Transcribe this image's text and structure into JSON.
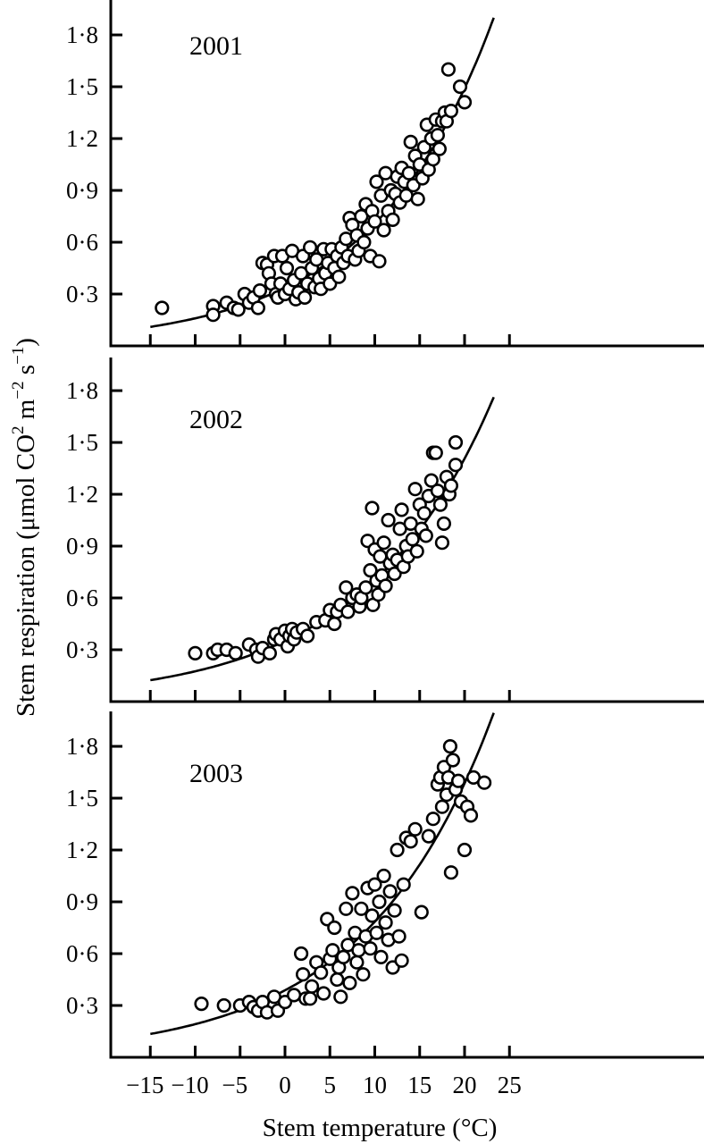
{
  "figure": {
    "xlabel": "Stem temperature (°C)",
    "ylabel_main": "Stem respiration (μmol CO",
    "ylabel_sub_2": "2",
    "ylabel_mid": " m",
    "ylabel_sup_m": "−2",
    "ylabel_s": " s",
    "ylabel_sup_s": "−1",
    "ylabel_end": ")",
    "x_ticks": [
      "−15",
      "−10",
      "−5",
      "0",
      "5",
      "10",
      "15",
      "20",
      "25"
    ],
    "y_ticks": [
      "0·3",
      "0·6",
      "0·9",
      "1·2",
      "1·5",
      "1·8"
    ]
  },
  "chart_data": [
    {
      "type": "scatter",
      "title": "2001",
      "xlabel": "Stem temperature (°C)",
      "ylabel": "Stem respiration (μmol CO2 m−2 s−1)",
      "xlim": [
        -19.5,
        46.5
      ],
      "ylim": [
        0,
        2.0
      ],
      "x_ticks": [
        -15,
        -10,
        -5,
        0,
        5,
        10,
        15,
        20,
        25
      ],
      "y_ticks": [
        0.3,
        0.6,
        0.9,
        1.2,
        1.5,
        1.8
      ],
      "fit": {
        "model": "exponential",
        "a": 0.336,
        "b": 0.0745,
        "x_range": [
          -15,
          23.3
        ]
      },
      "points": [
        [
          -13.7,
          0.22
        ],
        [
          -8,
          0.23
        ],
        [
          -8,
          0.18
        ],
        [
          -6.5,
          0.25
        ],
        [
          -5.7,
          0.22
        ],
        [
          -5.2,
          0.21
        ],
        [
          -4.5,
          0.3
        ],
        [
          -4,
          0.25
        ],
        [
          -3.5,
          0.28
        ],
        [
          -3,
          0.22
        ],
        [
          -2.8,
          0.32
        ],
        [
          -2.5,
          0.48
        ],
        [
          -2,
          0.47
        ],
        [
          -1.8,
          0.42
        ],
        [
          -1.5,
          0.36
        ],
        [
          -1.2,
          0.52
        ],
        [
          -1,
          0.3
        ],
        [
          -0.8,
          0.28
        ],
        [
          -0.5,
          0.36
        ],
        [
          -0.3,
          0.52
        ],
        [
          0,
          0.3
        ],
        [
          0.2,
          0.45
        ],
        [
          0.5,
          0.33
        ],
        [
          0.8,
          0.55
        ],
        [
          1,
          0.38
        ],
        [
          1.2,
          0.27
        ],
        [
          1.5,
          0.31
        ],
        [
          1.8,
          0.42
        ],
        [
          2,
          0.52
        ],
        [
          2.2,
          0.28
        ],
        [
          2.5,
          0.36
        ],
        [
          2.8,
          0.57
        ],
        [
          3,
          0.45
        ],
        [
          3.3,
          0.34
        ],
        [
          3.5,
          0.5
        ],
        [
          3.8,
          0.39
        ],
        [
          4,
          0.33
        ],
        [
          4.3,
          0.56
        ],
        [
          4.5,
          0.42
        ],
        [
          4.8,
          0.48
        ],
        [
          5,
          0.36
        ],
        [
          5.2,
          0.56
        ],
        [
          5.5,
          0.45
        ],
        [
          5.8,
          0.52
        ],
        [
          6,
          0.4
        ],
        [
          6.3,
          0.57
        ],
        [
          6.5,
          0.48
        ],
        [
          6.8,
          0.62
        ],
        [
          7,
          0.52
        ],
        [
          7.2,
          0.74
        ],
        [
          7.5,
          0.7
        ],
        [
          7.8,
          0.5
        ],
        [
          8,
          0.64
        ],
        [
          8.2,
          0.55
        ],
        [
          8.5,
          0.75
        ],
        [
          8.8,
          0.6
        ],
        [
          9,
          0.82
        ],
        [
          9.2,
          0.68
        ],
        [
          9.5,
          0.52
        ],
        [
          9.7,
          0.78
        ],
        [
          10,
          0.72
        ],
        [
          10.2,
          0.95
        ],
        [
          10.5,
          0.49
        ],
        [
          10.7,
          0.87
        ],
        [
          11,
          0.67
        ],
        [
          11.2,
          1.0
        ],
        [
          11.5,
          0.78
        ],
        [
          11.8,
          0.9
        ],
        [
          12,
          0.73
        ],
        [
          12.3,
          0.88
        ],
        [
          12.5,
          0.98
        ],
        [
          12.8,
          0.83
        ],
        [
          13,
          1.03
        ],
        [
          13.3,
          0.95
        ],
        [
          13.5,
          0.87
        ],
        [
          13.8,
          1.0
        ],
        [
          14,
          1.18
        ],
        [
          14.3,
          0.93
        ],
        [
          14.5,
          1.1
        ],
        [
          14.8,
          0.85
        ],
        [
          15,
          1.05
        ],
        [
          15.3,
          0.97
        ],
        [
          15.5,
          1.15
        ],
        [
          15.8,
          1.28
        ],
        [
          16,
          1.02
        ],
        [
          16.3,
          1.2
        ],
        [
          16.5,
          1.08
        ],
        [
          16.8,
          1.31
        ],
        [
          17,
          1.22
        ],
        [
          17.2,
          1.14
        ],
        [
          17.5,
          1.3
        ],
        [
          17.8,
          1.35
        ],
        [
          18,
          1.3
        ],
        [
          18.2,
          1.6
        ],
        [
          18.5,
          1.36
        ],
        [
          19.5,
          1.5
        ],
        [
          20,
          1.41
        ]
      ]
    },
    {
      "type": "scatter",
      "title": "2002",
      "xlabel": "Stem temperature (°C)",
      "ylabel": "Stem respiration (μmol CO2 m−2 s−1)",
      "xlim": [
        -19.5,
        46.5
      ],
      "ylim": [
        0,
        2.0
      ],
      "x_ticks": [
        -15,
        -10,
        -5,
        0,
        5,
        10,
        15,
        20,
        25
      ],
      "y_ticks": [
        0.3,
        0.6,
        0.9,
        1.2,
        1.5,
        1.8
      ],
      "fit": {
        "model": "exponential",
        "a": 0.351,
        "b": 0.0694,
        "x_range": [
          -15,
          23.3
        ]
      },
      "points": [
        [
          -10,
          0.28
        ],
        [
          -8,
          0.28
        ],
        [
          -7.5,
          0.3
        ],
        [
          -6.5,
          0.3
        ],
        [
          -5.5,
          0.28
        ],
        [
          -4,
          0.33
        ],
        [
          -3.2,
          0.3
        ],
        [
          -3,
          0.26
        ],
        [
          -2.5,
          0.31
        ],
        [
          -1.7,
          0.28
        ],
        [
          -1.2,
          0.36
        ],
        [
          -1,
          0.39
        ],
        [
          -0.5,
          0.36
        ],
        [
          0,
          0.41
        ],
        [
          0.3,
          0.32
        ],
        [
          0.5,
          0.38
        ],
        [
          0.8,
          0.42
        ],
        [
          1,
          0.36
        ],
        [
          1.3,
          0.4
        ],
        [
          2,
          0.42
        ],
        [
          2.5,
          0.38
        ],
        [
          3.5,
          0.46
        ],
        [
          4.5,
          0.47
        ],
        [
          5,
          0.53
        ],
        [
          5.5,
          0.45
        ],
        [
          5.8,
          0.52
        ],
        [
          6.2,
          0.56
        ],
        [
          6.8,
          0.66
        ],
        [
          7,
          0.52
        ],
        [
          7.5,
          0.6
        ],
        [
          8,
          0.62
        ],
        [
          8.3,
          0.55
        ],
        [
          8.5,
          0.6
        ],
        [
          9,
          0.66
        ],
        [
          9.2,
          0.93
        ],
        [
          9.5,
          0.76
        ],
        [
          9.7,
          1.12
        ],
        [
          9.8,
          0.56
        ],
        [
          10,
          0.88
        ],
        [
          10.2,
          0.7
        ],
        [
          10.4,
          0.62
        ],
        [
          10.6,
          0.84
        ],
        [
          10.8,
          0.73
        ],
        [
          11,
          0.92
        ],
        [
          11.2,
          0.67
        ],
        [
          11.5,
          1.05
        ],
        [
          11.7,
          0.8
        ],
        [
          12,
          0.85
        ],
        [
          12.2,
          0.74
        ],
        [
          12.5,
          0.82
        ],
        [
          12.8,
          1.0
        ],
        [
          13,
          1.11
        ],
        [
          13.2,
          0.78
        ],
        [
          13.5,
          0.9
        ],
        [
          13.7,
          0.84
        ],
        [
          14,
          1.03
        ],
        [
          14.2,
          0.94
        ],
        [
          14.5,
          1.23
        ],
        [
          14.7,
          0.87
        ],
        [
          15,
          1.14
        ],
        [
          15.2,
          1.0
        ],
        [
          15.5,
          1.09
        ],
        [
          15.7,
          0.96
        ],
        [
          16,
          1.19
        ],
        [
          16.3,
          1.28
        ],
        [
          16.5,
          1.44
        ],
        [
          16.8,
          1.44
        ],
        [
          17,
          1.22
        ],
        [
          17.3,
          1.14
        ],
        [
          17.5,
          0.92
        ],
        [
          17.7,
          1.03
        ],
        [
          18,
          1.3
        ],
        [
          18.3,
          1.2
        ],
        [
          18.5,
          1.25
        ],
        [
          19,
          1.5
        ],
        [
          19,
          1.37
        ]
      ]
    },
    {
      "type": "scatter",
      "title": "2003",
      "xlabel": "Stem temperature (°C)",
      "ylabel": "Stem respiration (μmol CO2 m−2 s−1)",
      "xlim": [
        -19.5,
        46.5
      ],
      "ylim": [
        0,
        2.0
      ],
      "x_ticks": [
        -15,
        -10,
        -5,
        0,
        5,
        10,
        15,
        20,
        25
      ],
      "y_ticks": [
        0.3,
        0.6,
        0.9,
        1.2,
        1.5,
        1.8
      ],
      "fit": {
        "model": "exponential",
        "a": 0.388,
        "b": 0.0704,
        "x_range": [
          -15,
          23.3
        ]
      },
      "points": [
        [
          -9.3,
          0.31
        ],
        [
          -6.8,
          0.3
        ],
        [
          -5,
          0.3
        ],
        [
          -4,
          0.32
        ],
        [
          -3.5,
          0.29
        ],
        [
          -3,
          0.27
        ],
        [
          -2.5,
          0.32
        ],
        [
          -2,
          0.26
        ],
        [
          -1.2,
          0.35
        ],
        [
          -0.8,
          0.27
        ],
        [
          0,
          0.32
        ],
        [
          1,
          0.36
        ],
        [
          1.8,
          0.6
        ],
        [
          2,
          0.48
        ],
        [
          2.3,
          0.34
        ],
        [
          2.8,
          0.34
        ],
        [
          3,
          0.41
        ],
        [
          3.5,
          0.55
        ],
        [
          4,
          0.49
        ],
        [
          4.3,
          0.37
        ],
        [
          4.7,
          0.8
        ],
        [
          5,
          0.57
        ],
        [
          5.3,
          0.62
        ],
        [
          5.5,
          0.75
        ],
        [
          5.8,
          0.45
        ],
        [
          6,
          0.52
        ],
        [
          6.2,
          0.35
        ],
        [
          6.5,
          0.58
        ],
        [
          6.8,
          0.86
        ],
        [
          7,
          0.65
        ],
        [
          7.2,
          0.43
        ],
        [
          7.5,
          0.95
        ],
        [
          7.8,
          0.72
        ],
        [
          8,
          0.55
        ],
        [
          8.2,
          0.62
        ],
        [
          8.5,
          0.86
        ],
        [
          8.7,
          0.48
        ],
        [
          9,
          0.7
        ],
        [
          9.2,
          0.98
        ],
        [
          9.5,
          0.63
        ],
        [
          9.7,
          0.82
        ],
        [
          10,
          1.0
        ],
        [
          10.2,
          0.72
        ],
        [
          10.5,
          0.9
        ],
        [
          10.7,
          0.58
        ],
        [
          11,
          1.05
        ],
        [
          11.2,
          0.78
        ],
        [
          11.5,
          0.68
        ],
        [
          11.7,
          0.96
        ],
        [
          12,
          0.52
        ],
        [
          12.2,
          0.85
        ],
        [
          12.5,
          1.2
        ],
        [
          12.7,
          0.7
        ],
        [
          13,
          0.56
        ],
        [
          13.2,
          1.0
        ],
        [
          13.5,
          1.27
        ],
        [
          14,
          1.25
        ],
        [
          14.5,
          1.32
        ],
        [
          15.2,
          0.84
        ],
        [
          16,
          1.28
        ],
        [
          16.5,
          1.38
        ],
        [
          17,
          1.58
        ],
        [
          17.3,
          1.62
        ],
        [
          17.5,
          1.45
        ],
        [
          17.7,
          1.68
        ],
        [
          18,
          1.52
        ],
        [
          18.2,
          1.62
        ],
        [
          18.4,
          1.8
        ],
        [
          18.5,
          1.07
        ],
        [
          18.7,
          1.72
        ],
        [
          19,
          1.55
        ],
        [
          19.3,
          1.6
        ],
        [
          19.6,
          1.48
        ],
        [
          20,
          1.2
        ],
        [
          20.3,
          1.45
        ],
        [
          20.7,
          1.4
        ],
        [
          21,
          1.62
        ],
        [
          22.2,
          1.59
        ]
      ]
    }
  ]
}
